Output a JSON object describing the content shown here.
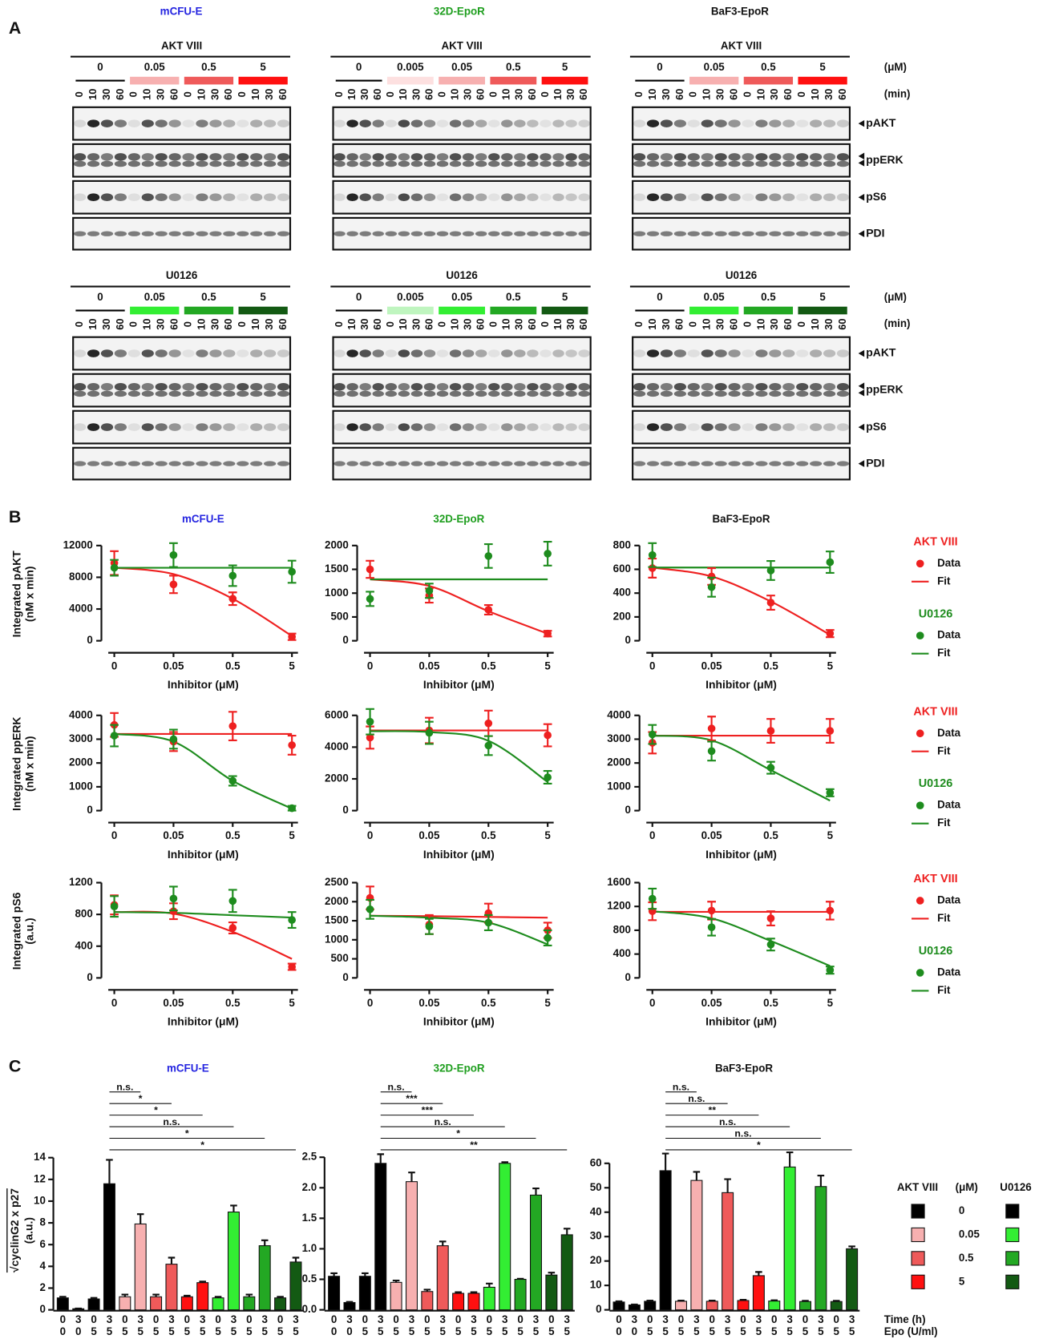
{
  "panel_a": {
    "label": "A",
    "conc_unit": "(μM)",
    "time_unit": "(min)",
    "times": [
      "0",
      "10",
      "30",
      "60"
    ],
    "bands": [
      "pAKT",
      "ppERK",
      "pS6",
      "PDI"
    ],
    "columns": [
      {
        "title": "mCFU-E",
        "color": "#2424e0",
        "blots": [
          {
            "inhibitor": "AKT VIII",
            "concentrations": [
              "0",
              "0.05",
              "0.5",
              "5"
            ],
            "colors": [
              "#000000",
              "#f7b0b0",
              "#ef5a5a",
              "#ff1010"
            ]
          },
          {
            "inhibitor": "U0126",
            "concentrations": [
              "0",
              "0.05",
              "0.5",
              "5"
            ],
            "colors": [
              "#000000",
              "#33ee33",
              "#23a823",
              "#135a13"
            ]
          }
        ]
      },
      {
        "title": "32D-EpoR",
        "color": "#1e9e1e",
        "blots": [
          {
            "inhibitor": "AKT VIII",
            "concentrations": [
              "0",
              "0.005",
              "0.05",
              "0.5",
              "5"
            ],
            "colors": [
              "#000000",
              "#fde0e0",
              "#f7b0b0",
              "#ef5a5a",
              "#ff1010"
            ]
          },
          {
            "inhibitor": "U0126",
            "concentrations": [
              "0",
              "0.005",
              "0.05",
              "0.5",
              "5"
            ],
            "colors": [
              "#000000",
              "#bff5bf",
              "#33ee33",
              "#23a823",
              "#135a13"
            ]
          }
        ]
      },
      {
        "title": "BaF3-EpoR",
        "color": "#111111",
        "blots": [
          {
            "inhibitor": "AKT VIII",
            "concentrations": [
              "0",
              "0.05",
              "0.5",
              "5"
            ],
            "colors": [
              "#000000",
              "#f7b0b0",
              "#ef5a5a",
              "#ff1010"
            ]
          },
          {
            "inhibitor": "U0126",
            "concentrations": [
              "0",
              "0.05",
              "0.5",
              "5"
            ],
            "colors": [
              "#000000",
              "#33ee33",
              "#23a823",
              "#135a13"
            ]
          }
        ]
      }
    ]
  },
  "panel_b": {
    "label": "B"
  },
  "panel_c": {
    "label": "C",
    "time_label": "Time (h)",
    "epo_label": "Epo (U/ml)",
    "legend": {
      "akt": "AKT VIII",
      "unit": "(μM)",
      "u0126": "U0126",
      "concentrations": [
        "0",
        "0.05",
        "0.5",
        "5"
      ],
      "akt_colors": [
        "#000000",
        "#f7b0b0",
        "#ef5a5a",
        "#ff1010"
      ],
      "u0126_colors": [
        "#000000",
        "#33ee33",
        "#23a823",
        "#135a13"
      ]
    }
  },
  "chart_data": [
    {
      "type": "line",
      "title": "mCFU-E",
      "title_color": "#2424e0",
      "ylabel": [
        "Integrated pAKT",
        "(nM x min)"
      ],
      "xlabel": "Inhibitor (μM)",
      "categories": [
        "0",
        "0.05",
        "0.5",
        "5"
      ],
      "ylim": [
        -865,
        12650
      ],
      "yticks": [
        0,
        4000,
        8000,
        12000
      ],
      "series": [
        {
          "color": "#ee2020",
          "values": [
            9800,
            7100,
            5300,
            500
          ],
          "errors": [
            1500,
            1100,
            800,
            400
          ],
          "fit": [
            9200,
            8400,
            5300,
            600
          ]
        },
        {
          "color": "#1e8c1e",
          "values": [
            9200,
            10800,
            8200,
            8700
          ],
          "errors": [
            1000,
            1500,
            1300,
            1400
          ],
          "fit": [
            9200,
            9200,
            9200,
            9200
          ]
        }
      ]
    },
    {
      "type": "line",
      "title": "32D-EpoR",
      "title_color": "#1e9e1e",
      "xlabel": "Inhibitor (μM)",
      "categories": [
        "0",
        "0.05",
        "0.5",
        "5"
      ],
      "ylim": [
        -144,
        2108
      ],
      "yticks": [
        0,
        500,
        1000,
        1500,
        2000
      ],
      "series": [
        {
          "color": "#ee2020",
          "values": [
            1500,
            950,
            650,
            150
          ],
          "errors": [
            180,
            150,
            100,
            60
          ],
          "fit": [
            1290,
            1150,
            620,
            150
          ]
        },
        {
          "color": "#1e8c1e",
          "values": [
            880,
            1050,
            1780,
            1830
          ],
          "errors": [
            150,
            150,
            250,
            250
          ],
          "fit": [
            1290,
            1290,
            1290,
            1290
          ]
        }
      ]
    },
    {
      "type": "line",
      "title": "BaF3-EpoR",
      "title_color": "#111111",
      "xlabel": "Inhibitor (μM)",
      "categories": [
        "0",
        "0.05",
        "0.5",
        "5"
      ],
      "ylim": [
        -58,
        843
      ],
      "yticks": [
        0,
        200,
        400,
        600,
        800
      ],
      "legend": [
        "Data",
        "Fit"
      ],
      "series": [
        {
          "name": "AKT VIII",
          "color": "#ee2020",
          "values": [
            610,
            540,
            320,
            60
          ],
          "errors": [
            80,
            70,
            60,
            30
          ],
          "fit": [
            615,
            540,
            330,
            50
          ]
        },
        {
          "name": "U0126",
          "color": "#1e8c1e",
          "values": [
            720,
            450,
            590,
            660
          ],
          "errors": [
            100,
            80,
            80,
            90
          ],
          "fit": [
            615,
            615,
            615,
            615
          ]
        }
      ]
    },
    {
      "type": "line",
      "ylabel": [
        "Integrated ppERK",
        "(nM x min)"
      ],
      "xlabel": "Inhibitor (μM)",
      "categories": [
        "0",
        "0.05",
        "0.5",
        "5"
      ],
      "ylim": [
        -288,
        4216
      ],
      "yticks": [
        0,
        1000,
        2000,
        3000,
        4000
      ],
      "series": [
        {
          "color": "#ee2020",
          "values": [
            3600,
            2900,
            3550,
            2750
          ],
          "errors": [
            500,
            400,
            600,
            400
          ],
          "fit": [
            3220,
            3220,
            3220,
            3220
          ]
        },
        {
          "color": "#1e8c1e",
          "values": [
            3150,
            3000,
            1250,
            100
          ],
          "errors": [
            450,
            400,
            200,
            100
          ],
          "fit": [
            3220,
            2900,
            1250,
            80
          ]
        }
      ]
    },
    {
      "type": "line",
      "xlabel": "Inhibitor (μM)",
      "categories": [
        "0",
        "0.05",
        "0.5",
        "5"
      ],
      "ylim": [
        -432,
        6324
      ],
      "yticks": [
        0,
        2000,
        4000,
        6000
      ],
      "series": [
        {
          "color": "#ee2020",
          "values": [
            4600,
            5050,
            5500,
            4750
          ],
          "errors": [
            700,
            800,
            800,
            700
          ],
          "fit": [
            5050,
            5050,
            5050,
            5050
          ]
        },
        {
          "color": "#1e8c1e",
          "values": [
            5600,
            4900,
            4100,
            2100
          ],
          "errors": [
            800,
            700,
            600,
            400
          ],
          "fit": [
            5000,
            4950,
            4400,
            1800
          ]
        }
      ]
    },
    {
      "type": "line",
      "xlabel": "Inhibitor (μM)",
      "categories": [
        "0",
        "0.05",
        "0.5",
        "5"
      ],
      "ylim": [
        -288,
        4216
      ],
      "yticks": [
        0,
        1000,
        2000,
        3000,
        4000
      ],
      "legend": [
        "Data",
        "Fit"
      ],
      "series": [
        {
          "name": "AKT VIII",
          "color": "#ee2020",
          "values": [
            2850,
            3450,
            3350,
            3350
          ],
          "errors": [
            450,
            500,
            500,
            500
          ],
          "fit": [
            3150,
            3150,
            3150,
            3150
          ]
        },
        {
          "name": "U0126",
          "color": "#1e8c1e",
          "values": [
            3200,
            2500,
            1800,
            750
          ],
          "errors": [
            400,
            400,
            250,
            150
          ],
          "fit": [
            3150,
            2950,
            1700,
            420
          ]
        }
      ]
    },
    {
      "type": "line",
      "ylabel": [
        "Integrated pS6",
        "(a.u.)"
      ],
      "xlabel": "Inhibitor (μM)",
      "categories": [
        "0",
        "0.05",
        "0.5",
        "5"
      ],
      "ylim": [
        -86,
        1265
      ],
      "yticks": [
        0,
        400,
        800,
        1200
      ],
      "series": [
        {
          "color": "#ee2020",
          "values": [
            920,
            840,
            630,
            140
          ],
          "errors": [
            120,
            100,
            70,
            40
          ],
          "fit": [
            830,
            810,
            580,
            240
          ]
        },
        {
          "color": "#1e8c1e",
          "values": [
            900,
            1000,
            970,
            730
          ],
          "errors": [
            130,
            150,
            140,
            100
          ],
          "fit": [
            830,
            820,
            790,
            760
          ]
        }
      ]
    },
    {
      "type": "line",
      "xlabel": "Inhibitor (μM)",
      "categories": [
        "0",
        "0.05",
        "0.5",
        "5"
      ],
      "ylim": [
        -180,
        2635
      ],
      "yticks": [
        0,
        500,
        1000,
        1500,
        2000,
        2500
      ],
      "series": [
        {
          "color": "#ee2020",
          "values": [
            2100,
            1400,
            1700,
            1250
          ],
          "errors": [
            300,
            250,
            250,
            200
          ],
          "fit": [
            1630,
            1620,
            1600,
            1580
          ]
        },
        {
          "color": "#1e8c1e",
          "values": [
            1800,
            1350,
            1450,
            1050
          ],
          "errors": [
            250,
            200,
            200,
            200
          ],
          "fit": [
            1630,
            1580,
            1450,
            880
          ]
        }
      ]
    },
    {
      "type": "line",
      "xlabel": "Inhibitor (μM)",
      "categories": [
        "0",
        "0.05",
        "0.5",
        "5"
      ],
      "ylim": [
        -115,
        1686
      ],
      "yticks": [
        0,
        400,
        800,
        1200,
        1600
      ],
      "legend": [
        "Data",
        "Fit"
      ],
      "series": [
        {
          "name": "AKT VIII",
          "color": "#ee2020",
          "values": [
            1120,
            1130,
            1000,
            1130
          ],
          "errors": [
            150,
            150,
            120,
            150
          ],
          "fit": [
            1110,
            1110,
            1110,
            1110
          ]
        },
        {
          "name": "U0126",
          "color": "#1e8c1e",
          "values": [
            1330,
            850,
            560,
            130
          ],
          "errors": [
            170,
            140,
            100,
            60
          ],
          "fit": [
            1120,
            1000,
            620,
            200
          ]
        }
      ]
    },
    {
      "type": "bar",
      "title": "mCFU-E",
      "title_color": "#2424e0",
      "ylabel": "√cyclinG2 x p27",
      "ylabel_unit": "(a.u.)",
      "x_time": [
        "0",
        "3",
        "0",
        "3",
        "0",
        "3",
        "0",
        "3",
        "0",
        "3",
        "0",
        "3",
        "0",
        "3",
        "0",
        "3"
      ],
      "x_epo": [
        "0",
        "0",
        "5",
        "5",
        "5",
        "5",
        "5",
        "5",
        "5",
        "5",
        "5",
        "5",
        "5",
        "5",
        "5",
        "5"
      ],
      "values": [
        1.1,
        0.1,
        1.0,
        11.6,
        1.2,
        7.9,
        1.2,
        4.2,
        1.2,
        2.5,
        1.1,
        9.0,
        1.2,
        5.9,
        1.1,
        4.4
      ],
      "errors": [
        0.1,
        0.02,
        0.1,
        2.2,
        0.2,
        0.9,
        0.2,
        0.6,
        0.1,
        0.1,
        0.1,
        0.6,
        0.2,
        0.5,
        0.1,
        0.4
      ],
      "colors": [
        "#000000",
        "#000000",
        "#000000",
        "#000000",
        "#f7b0b0",
        "#f7b0b0",
        "#ef5a5a",
        "#ef5a5a",
        "#ff1010",
        "#ff1010",
        "#33ee33",
        "#33ee33",
        "#23a823",
        "#23a823",
        "#135a13",
        "#135a13"
      ],
      "ylim": [
        0,
        14.6
      ],
      "yticks": [
        0,
        2,
        4,
        6,
        8,
        10,
        12,
        14
      ],
      "significance": [
        "n.s.",
        "*",
        "*",
        "n.s.",
        "*",
        "*"
      ]
    },
    {
      "type": "bar",
      "title": "32D-EpoR",
      "title_color": "#1e9e1e",
      "x_time": [
        "0",
        "3",
        "0",
        "3",
        "0",
        "3",
        "0",
        "3",
        "0",
        "3",
        "0",
        "3",
        "0",
        "3",
        "0",
        "3"
      ],
      "x_epo": [
        "0",
        "0",
        "5",
        "5",
        "5",
        "5",
        "5",
        "5",
        "5",
        "5",
        "5",
        "5",
        "5",
        "5",
        "5",
        "5"
      ],
      "values": [
        0.55,
        0.12,
        0.55,
        2.4,
        0.45,
        2.1,
        0.3,
        1.05,
        0.27,
        0.27,
        0.37,
        2.4,
        0.5,
        1.88,
        0.57,
        1.23
      ],
      "errors": [
        0.05,
        0.01,
        0.05,
        0.15,
        0.03,
        0.15,
        0.03,
        0.07,
        0.02,
        0.02,
        0.06,
        0.02,
        0.01,
        0.11,
        0.04,
        0.1
      ],
      "colors": [
        "#000000",
        "#000000",
        "#000000",
        "#000000",
        "#f7b0b0",
        "#f7b0b0",
        "#ef5a5a",
        "#ef5a5a",
        "#ff1010",
        "#ff1010",
        "#33ee33",
        "#33ee33",
        "#23a823",
        "#23a823",
        "#135a13",
        "#135a13"
      ],
      "ylim": [
        0,
        2.6
      ],
      "yticks": [
        {
          "value": 0,
          "label": "0.0"
        },
        {
          "value": 0.5,
          "label": "0.5"
        },
        {
          "value": 1,
          "label": "1.0"
        },
        {
          "value": 1.5,
          "label": "1.5"
        },
        {
          "value": 2,
          "label": "2.0"
        },
        {
          "value": 2.5,
          "label": "2.5"
        }
      ],
      "significance": [
        "n.s.",
        "***",
        "***",
        "n.s.",
        "*",
        "**"
      ]
    },
    {
      "type": "bar",
      "title": "BaF3-EpoR",
      "title_color": "#111111",
      "x_time": [
        "0",
        "3",
        "0",
        "3",
        "0",
        "3",
        "0",
        "3",
        "0",
        "3",
        "0",
        "3",
        "0",
        "3",
        "0",
        "3"
      ],
      "x_epo": [
        "0",
        "0",
        "5",
        "5",
        "5",
        "5",
        "5",
        "5",
        "5",
        "5",
        "5",
        "5",
        "5",
        "5",
        "5",
        "5"
      ],
      "values": [
        3.2,
        2.0,
        3.5,
        57,
        3.5,
        53,
        3.5,
        48,
        3.8,
        14,
        3.6,
        58.5,
        3.4,
        50.5,
        3.4,
        25
      ],
      "errors": [
        0.3,
        0.2,
        0.3,
        7,
        0.3,
        3.5,
        0.3,
        5.5,
        0.3,
        1.5,
        0.3,
        6,
        0.3,
        4.5,
        0.3,
        1
      ],
      "colors": [
        "#000000",
        "#000000",
        "#000000",
        "#000000",
        "#f7b0b0",
        "#f7b0b0",
        "#ef5a5a",
        "#ef5a5a",
        "#ff1010",
        "#ff1010",
        "#33ee33",
        "#33ee33",
        "#23a823",
        "#23a823",
        "#135a13",
        "#135a13"
      ],
      "ylim": [
        0,
        65
      ],
      "yticks": [
        0,
        10,
        20,
        30,
        40,
        50,
        60
      ],
      "significance": [
        "n.s.",
        "n.s.",
        "**",
        "n.s.",
        "n.s.",
        "*"
      ]
    }
  ]
}
